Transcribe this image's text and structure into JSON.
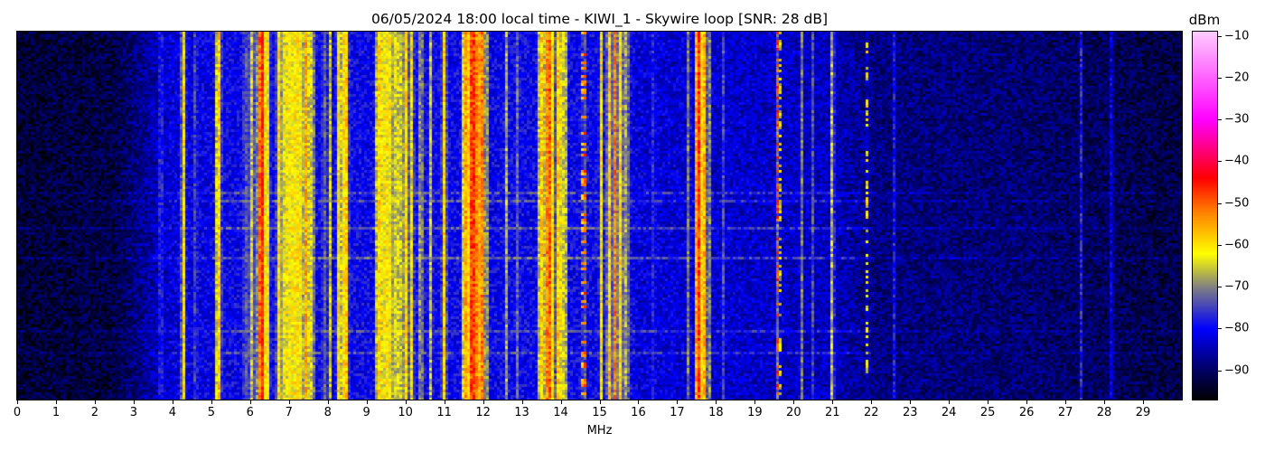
{
  "chart_data": {
    "type": "heatmap",
    "title": "06/05/2024 18:00 local time - KIWI_1 - Skywire loop [SNR: 28 dB]",
    "xlabel": "MHz",
    "ylabel": "",
    "xlim": [
      0,
      30
    ],
    "xticks": [
      "0",
      "1",
      "2",
      "3",
      "4",
      "5",
      "6",
      "7",
      "8",
      "9",
      "10",
      "11",
      "12",
      "13",
      "14",
      "15",
      "16",
      "17",
      "18",
      "19",
      "20",
      "21",
      "22",
      "23",
      "24",
      "25",
      "26",
      "27",
      "28",
      "29"
    ],
    "colorbar": {
      "label": "dBm",
      "range": [
        -97,
        -9
      ],
      "ticks": [
        "-10",
        "-20",
        "-30",
        "-40",
        "-50",
        "-60",
        "-70",
        "-80",
        "-90"
      ],
      "tick_values": [
        -10,
        -20,
        -30,
        -40,
        -50,
        -60,
        -70,
        -80,
        -90
      ],
      "colormap": [
        {
          "dbm": -97,
          "color": "#000000"
        },
        {
          "dbm": -88,
          "color": "#000080"
        },
        {
          "dbm": -80,
          "color": "#0000ff"
        },
        {
          "dbm": -70,
          "color": "#808080"
        },
        {
          "dbm": -62,
          "color": "#ffff00"
        },
        {
          "dbm": -52,
          "color": "#ff8000"
        },
        {
          "dbm": -44,
          "color": "#ff0000"
        },
        {
          "dbm": -30,
          "color": "#ff00ff"
        },
        {
          "dbm": -9,
          "color": "#ffccff"
        }
      ]
    },
    "noise_floor": [
      {
        "mhz": 0,
        "dbm": -93
      },
      {
        "mhz": 2.5,
        "dbm": -92
      },
      {
        "mhz": 3.5,
        "dbm": -85
      },
      {
        "mhz": 4.0,
        "dbm": -82
      },
      {
        "mhz": 6.0,
        "dbm": -80
      },
      {
        "mhz": 15.8,
        "dbm": -80
      },
      {
        "mhz": 16.0,
        "dbm": -82
      },
      {
        "mhz": 18.0,
        "dbm": -83
      },
      {
        "mhz": 21.0,
        "dbm": -84
      },
      {
        "mhz": 22.0,
        "dbm": -88
      },
      {
        "mhz": 26.0,
        "dbm": -89
      },
      {
        "mhz": 30.0,
        "dbm": -92
      }
    ],
    "signals": [
      {
        "mhz": 3.7,
        "width": 0.03,
        "dbm": -72
      },
      {
        "mhz": 4.28,
        "width": 0.04,
        "dbm": -62
      },
      {
        "mhz": 4.6,
        "width": 0.03,
        "dbm": -72
      },
      {
        "mhz": 5.18,
        "width": 0.05,
        "dbm": -58
      },
      {
        "mhz": 5.9,
        "width": 0.1,
        "dbm": -75
      },
      {
        "mhz": 6.05,
        "width": 0.05,
        "dbm": -65
      },
      {
        "mhz": 6.3,
        "width": 0.06,
        "dbm": -45
      },
      {
        "mhz": 6.45,
        "width": 0.04,
        "dbm": -62
      },
      {
        "mhz": 6.75,
        "width": 0.05,
        "dbm": -60
      },
      {
        "mhz": 6.95,
        "width": 0.15,
        "dbm": -63
      },
      {
        "mhz": 7.2,
        "width": 0.2,
        "dbm": -61
      },
      {
        "mhz": 7.45,
        "width": 0.05,
        "dbm": -55
      },
      {
        "mhz": 7.6,
        "width": 0.04,
        "dbm": -63
      },
      {
        "mhz": 7.9,
        "width": 0.03,
        "dbm": -70
      },
      {
        "mhz": 8.05,
        "width": 0.03,
        "dbm": -66
      },
      {
        "mhz": 8.3,
        "width": 0.04,
        "dbm": -58
      },
      {
        "mhz": 8.45,
        "width": 0.05,
        "dbm": -56
      },
      {
        "mhz": 9.3,
        "width": 0.05,
        "dbm": -60
      },
      {
        "mhz": 9.5,
        "width": 0.2,
        "dbm": -62
      },
      {
        "mhz": 9.8,
        "width": 0.15,
        "dbm": -65
      },
      {
        "mhz": 10.0,
        "width": 0.04,
        "dbm": -60
      },
      {
        "mhz": 10.15,
        "width": 0.05,
        "dbm": -63
      },
      {
        "mhz": 10.4,
        "width": 0.03,
        "dbm": -63
      },
      {
        "mhz": 10.65,
        "width": 0.03,
        "dbm": -66
      },
      {
        "mhz": 11.0,
        "width": 0.04,
        "dbm": -60
      },
      {
        "mhz": 11.55,
        "width": 0.06,
        "dbm": -55
      },
      {
        "mhz": 11.75,
        "width": 0.12,
        "dbm": -48
      },
      {
        "mhz": 11.95,
        "width": 0.06,
        "dbm": -52
      },
      {
        "mhz": 12.1,
        "width": 0.03,
        "dbm": -70
      },
      {
        "mhz": 12.6,
        "width": 0.03,
        "dbm": -68
      },
      {
        "mhz": 12.9,
        "width": 0.03,
        "dbm": -72
      },
      {
        "mhz": 13.5,
        "width": 0.06,
        "dbm": -58
      },
      {
        "mhz": 13.7,
        "width": 0.08,
        "dbm": -50
      },
      {
        "mhz": 13.95,
        "width": 0.06,
        "dbm": -58
      },
      {
        "mhz": 14.1,
        "width": 0.04,
        "dbm": -61
      },
      {
        "mhz": 14.6,
        "width": 0.03,
        "dbm": -45,
        "intermittent": true
      },
      {
        "mhz": 15.05,
        "width": 0.03,
        "dbm": -62
      },
      {
        "mhz": 15.25,
        "width": 0.04,
        "dbm": -58
      },
      {
        "mhz": 15.4,
        "width": 0.03,
        "dbm": -52
      },
      {
        "mhz": 15.55,
        "width": 0.04,
        "dbm": -60
      },
      {
        "mhz": 15.7,
        "width": 0.05,
        "dbm": -68
      },
      {
        "mhz": 16.4,
        "width": 0.02,
        "dbm": -72
      },
      {
        "mhz": 17.3,
        "width": 0.03,
        "dbm": -70
      },
      {
        "mhz": 17.55,
        "width": 0.06,
        "dbm": -47
      },
      {
        "mhz": 17.7,
        "width": 0.04,
        "dbm": -56
      },
      {
        "mhz": 17.85,
        "width": 0.02,
        "dbm": -70
      },
      {
        "mhz": 18.2,
        "width": 0.02,
        "dbm": -75
      },
      {
        "mhz": 19.6,
        "width": 0.02,
        "dbm": -45,
        "intermittent": true
      },
      {
        "mhz": 20.2,
        "width": 0.02,
        "dbm": -70
      },
      {
        "mhz": 20.5,
        "width": 0.02,
        "dbm": -75
      },
      {
        "mhz": 21.0,
        "width": 0.03,
        "dbm": -65
      },
      {
        "mhz": 21.9,
        "width": 0.02,
        "dbm": -62,
        "intermittent": true
      },
      {
        "mhz": 22.6,
        "width": 0.02,
        "dbm": -78
      },
      {
        "mhz": 27.4,
        "width": 0.02,
        "dbm": -78
      },
      {
        "mhz": 28.2,
        "width": 0.02,
        "dbm": -75
      }
    ]
  }
}
